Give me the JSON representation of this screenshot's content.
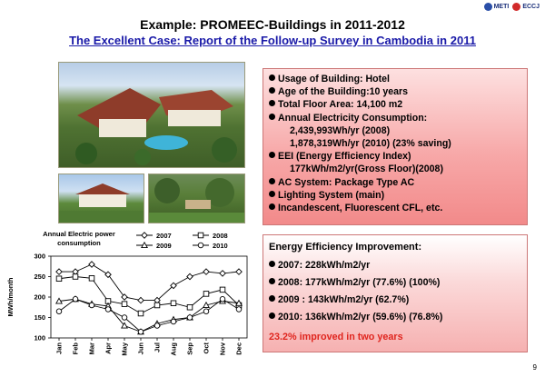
{
  "header": {
    "logo_meti": "METI",
    "logo_eccj": "ECCJ",
    "title": "Example: PROMEEC-Buildings in 2011-2012",
    "subtitle": "The Excellent Case: Report of the Follow-up Survey in Cambodia in 2011"
  },
  "info_box": {
    "lines": [
      {
        "text": "Usage of Building: Hotel",
        "bullet": true
      },
      {
        "text": "Age of the Building:10 years",
        "bullet": true
      },
      {
        "text": "Total Floor Area: 14,100 m2",
        "bullet": true
      },
      {
        "text": "Annual Electricity Consumption:",
        "bullet": true
      },
      {
        "text": "2,439,993Wh/yr (2008)",
        "bullet": false
      },
      {
        "text": "1,878,319Wh/yr (2010) (23% saving)",
        "bullet": false
      },
      {
        "text": "EEI (Energy Efficiency Index)",
        "bullet": true
      },
      {
        "text": "177kWh/m2/yr(Gross Floor)(2008)",
        "bullet": false
      },
      {
        "text": "AC System: Package Type AC",
        "bullet": true
      },
      {
        "text": "Lighting System (main)",
        "bullet": true
      },
      {
        "text": "Incandescent, Fluorescent CFL, etc.",
        "bullet": true
      }
    ]
  },
  "efficiency_box": {
    "title": "Energy Efficiency Improvement:",
    "lines": [
      "2007: 228kWh/m2/yr",
      "2008: 177kWh/m2/yr   (77.6%) (100%)",
      "2009 : 143kWh/m2/yr (62.7%)",
      "2010: 136kWh/m2/yr   (59.6%) (76.8%)"
    ],
    "conclusion": "23.2% improved in two years"
  },
  "chart_data": {
    "type": "line",
    "title": "Annual Electric power consumption",
    "ylabel": "MWh/month",
    "xlabel": "",
    "ylim": [
      100,
      300
    ],
    "yticks": [
      100,
      150,
      200,
      250,
      300
    ],
    "categories": [
      "Jan",
      "Feb",
      "Mar",
      "Apr",
      "May",
      "Jun",
      "Jul",
      "Aug",
      "Sep",
      "Oct",
      "Nov",
      "Dec"
    ],
    "legend_position": "top",
    "grid": false,
    "series": [
      {
        "name": "2007",
        "marker": "diamond",
        "values": [
          262,
          262,
          280,
          255,
          200,
          192,
          192,
          228,
          250,
          262,
          258,
          262
        ]
      },
      {
        "name": "2008",
        "marker": "square",
        "values": [
          245,
          250,
          246,
          190,
          183,
          160,
          180,
          185,
          175,
          208,
          218,
          180
        ]
      },
      {
        "name": "2009",
        "marker": "triangle",
        "values": [
          190,
          195,
          183,
          178,
          130,
          115,
          135,
          145,
          150,
          180,
          190,
          185
        ]
      },
      {
        "name": "2010",
        "marker": "circle",
        "values": [
          165,
          195,
          180,
          170,
          150,
          115,
          130,
          140,
          150,
          165,
          195,
          170
        ]
      }
    ]
  },
  "page_number": "9"
}
